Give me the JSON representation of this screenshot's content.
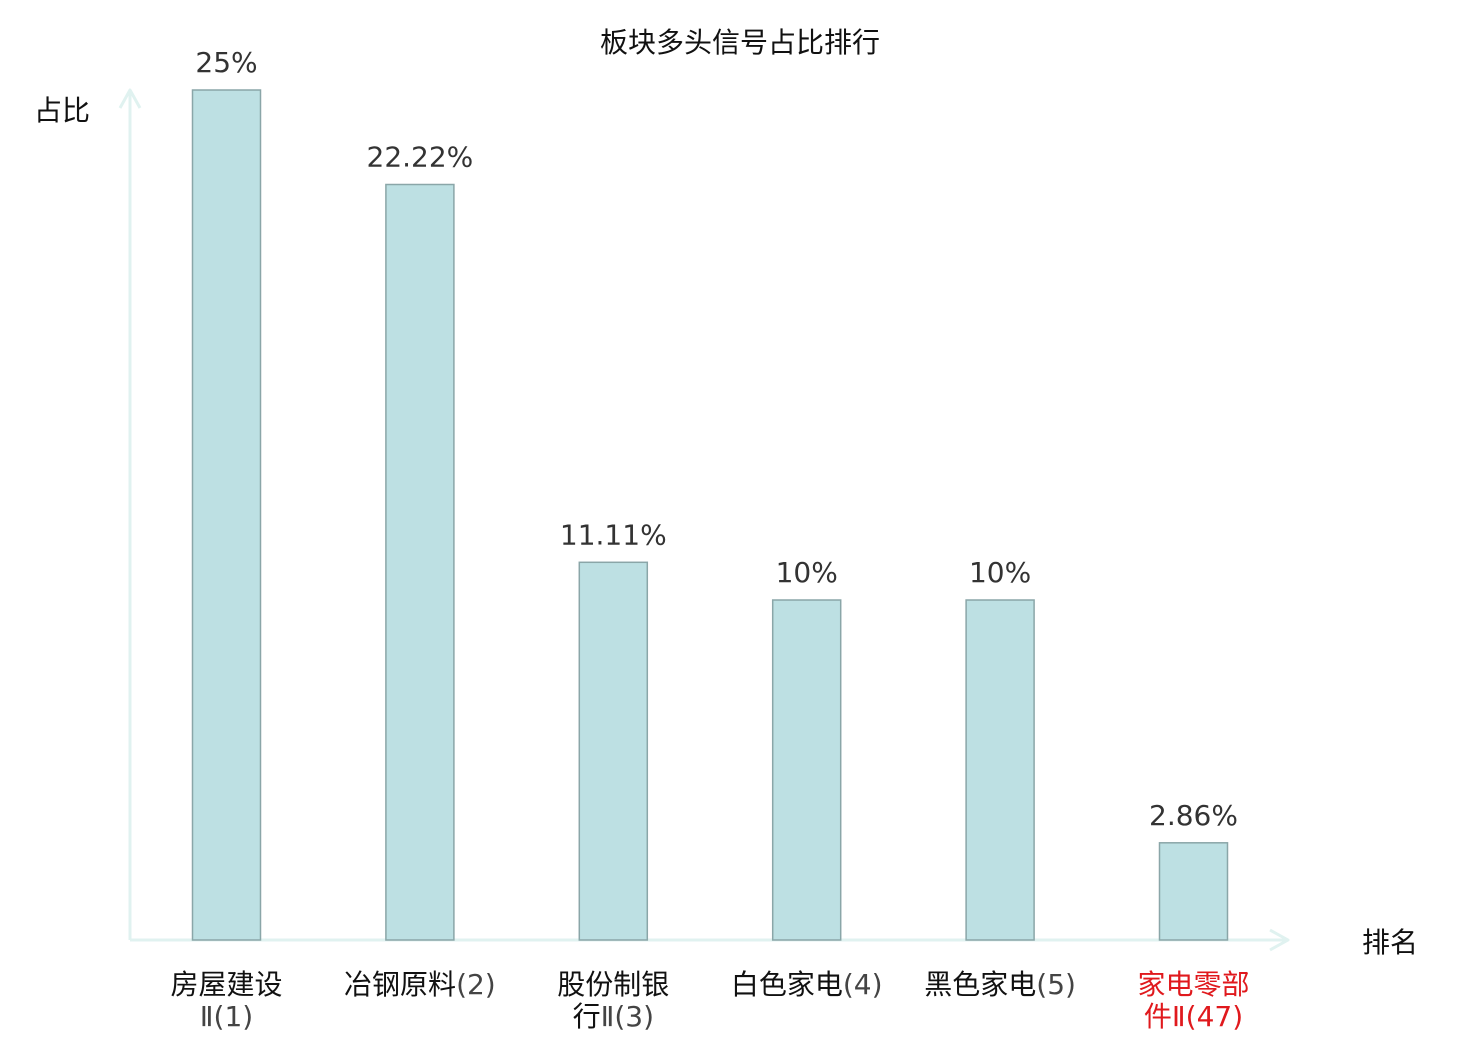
{
  "chart_data": {
    "type": "bar",
    "title": "板块多头信号占比排行",
    "xlabel": "排名",
    "ylabel": "占比",
    "categories": [
      {
        "name": "房屋建设Ⅱ",
        "rank": "(1)",
        "highlight": false
      },
      {
        "name": "冶钢原料",
        "rank": "(2)",
        "highlight": false
      },
      {
        "name": "股份制银行Ⅱ",
        "rank": "(3)",
        "highlight": false
      },
      {
        "name": "白色家电",
        "rank": "(4)",
        "highlight": false
      },
      {
        "name": "黑色家电",
        "rank": "(5)",
        "highlight": false
      },
      {
        "name": "家电零部件Ⅱ",
        "rank": "(47)",
        "highlight": true
      }
    ],
    "values": [
      25,
      22.22,
      11.11,
      10,
      10,
      2.86
    ],
    "value_labels": [
      "25%",
      "22.22%",
      "11.11%",
      "10%",
      "10%",
      "2.86%"
    ],
    "ylim": [
      0,
      25
    ],
    "grid": false,
    "colors": {
      "bar_fill": "#bde0e3",
      "bar_stroke": "#8aa6a8",
      "axis": "#e0f2f0",
      "highlight_text": "#e0191d",
      "value_text": "#333333",
      "title_text": "#111111"
    }
  }
}
